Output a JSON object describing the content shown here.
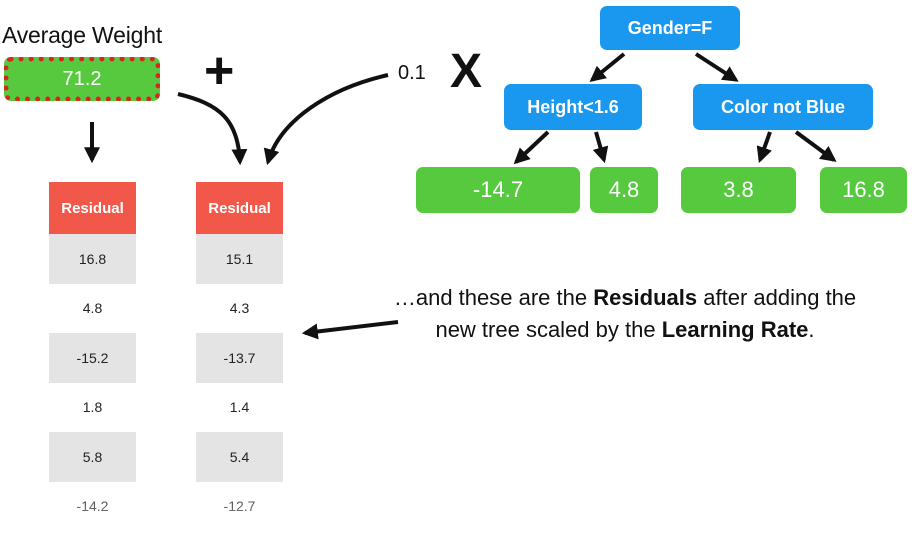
{
  "average": {
    "title": "Average Weight",
    "value": "71.2"
  },
  "operators": {
    "plus": "+",
    "learning_rate": "0.1",
    "times": "X"
  },
  "tree": {
    "root": "Gender=F",
    "left": "Height<1.6",
    "right": "Color not Blue",
    "leaves": [
      "-14.7",
      "4.8",
      "3.8",
      "16.8"
    ]
  },
  "table_old": {
    "header": "Residual",
    "values": [
      "16.8",
      "4.8",
      "-15.2",
      "1.8",
      "5.8",
      "-14.2"
    ]
  },
  "table_new": {
    "header": "Residual",
    "values": [
      "15.1",
      "4.3",
      "-13.7",
      "1.4",
      "5.4",
      "-12.7"
    ]
  },
  "caption": {
    "part1": "…and these are the ",
    "bold1": "Residuals",
    "part2": " after adding the new tree scaled by the ",
    "bold2": "Learning Rate",
    "part3": "."
  },
  "colors": {
    "node": "#1a97ee",
    "leaf": "#57c93f",
    "header": "#f1584a",
    "dotted_border": "#d9261c"
  }
}
